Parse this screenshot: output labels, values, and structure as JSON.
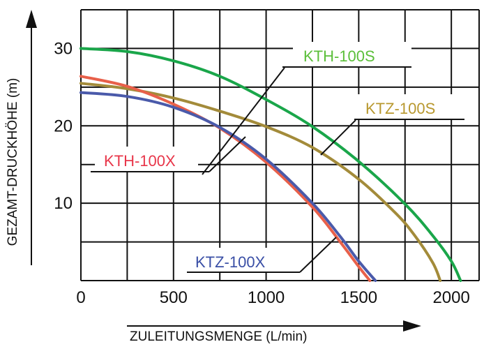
{
  "chart_data": {
    "type": "line",
    "title": "",
    "xlabel": "ZULEITUNGSMENGE (L/min)",
    "ylabel": "GEZAMT-DRUCKHÖHE (m)",
    "xlim": [
      0,
      2150
    ],
    "ylim": [
      0,
      35
    ],
    "x_ticks": [
      "0",
      "500",
      "1000",
      "1500",
      "2000"
    ],
    "y_ticks": [
      "10",
      "20",
      "30"
    ],
    "grid": true,
    "series": [
      {
        "name": "KTH-100S",
        "color": "#1aa64a",
        "label_color": "#5bbf3a",
        "x": [
          0,
          250,
          500,
          750,
          1000,
          1250,
          1500,
          1750,
          1900,
          2000,
          2050
        ],
        "y": [
          30,
          29.6,
          28.4,
          26.4,
          23.4,
          19.9,
          15.4,
          9.9,
          5.8,
          2.5,
          0
        ]
      },
      {
        "name": "KTZ-100S",
        "color": "#a38b3a",
        "label_color": "#b8982f",
        "x": [
          0,
          250,
          500,
          750,
          1000,
          1250,
          1500,
          1700,
          1800,
          1900,
          1940
        ],
        "y": [
          25.5,
          24.8,
          23.6,
          21.9,
          19.9,
          17.2,
          13.1,
          8.7,
          5.9,
          2.3,
          0
        ]
      },
      {
        "name": "KTH-100X",
        "color": "#e8604a",
        "label_color": "#e8364a",
        "x": [
          0,
          250,
          500,
          750,
          1000,
          1250,
          1400,
          1500,
          1560
        ],
        "y": [
          26.4,
          25.1,
          22.8,
          19.7,
          15.3,
          9.5,
          5.0,
          1.8,
          0
        ]
      },
      {
        "name": "KTZ-100X",
        "color": "#4a5aaa",
        "label_color": "#3a4fa6",
        "x": [
          0,
          250,
          500,
          750,
          1000,
          1250,
          1400,
          1500,
          1590
        ],
        "y": [
          24.3,
          23.8,
          22.4,
          19.8,
          15.7,
          10.0,
          5.7,
          2.5,
          0
        ]
      }
    ]
  }
}
